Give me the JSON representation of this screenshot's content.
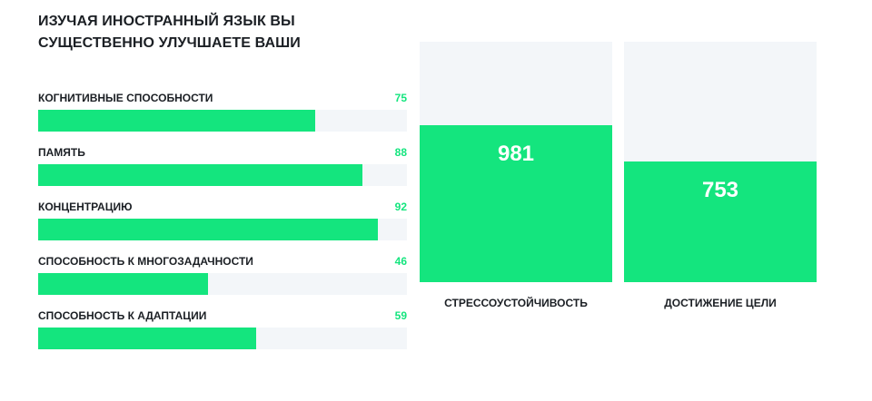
{
  "title_lines": [
    "ИЗУЧАЯ ИНОСТРАННЫЙ ЯЗЫК ВЫ",
    "СУЩЕСТВЕННО УЛУЧШАЕТЕ ВАШИ"
  ],
  "colors": {
    "accent": "#14e57e",
    "track": "#f3f6f9",
    "text": "#1b1f24",
    "value_on_bar": "#ffffff"
  },
  "chart_data": [
    {
      "type": "bar",
      "orientation": "horizontal",
      "categories": [
        "КОГНИТИВНЫЕ СПОСОБНОСТИ",
        "ПАМЯТЬ",
        "КОНЦЕНТРАЦИЮ",
        "СПОСОБНОСТЬ К МНОГОЗАДАЧНОСТИ",
        "СПОСОБНОСТЬ К АДАПТАЦИИ"
      ],
      "values": [
        75,
        88,
        92,
        46,
        59
      ],
      "xlim": [
        0,
        100
      ],
      "grid": false,
      "legend": "none"
    },
    {
      "type": "bar",
      "orientation": "vertical",
      "categories": [
        "СТРЕССОУСТОЙЧИВОСТЬ",
        "ДОСТИЖЕНИЕ ЦЕЛИ"
      ],
      "values": [
        981,
        753
      ],
      "ylim": [
        0,
        1500
      ],
      "grid": false,
      "legend": "none"
    }
  ]
}
